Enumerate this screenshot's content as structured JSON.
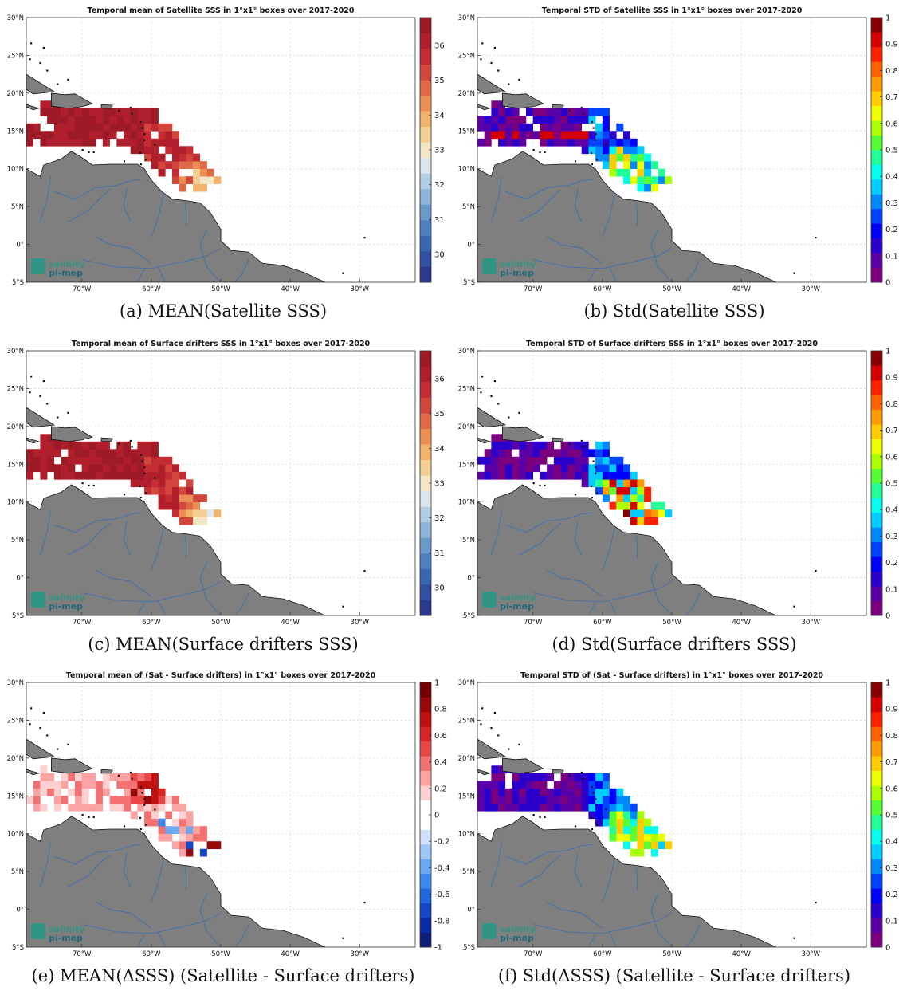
{
  "figure": {
    "panels": [
      {
        "id": "a",
        "title": "Temporal mean of Satellite SSS in 1°x1° boxes over 2017-2020",
        "caption": "(a) MEAN(Satellite SSS)",
        "colormap": "sss",
        "cbar_ticks": [
          "36",
          "35",
          "34",
          "33",
          "32",
          "31",
          "30"
        ],
        "cbar_range": [
          29.2,
          36.8
        ],
        "pattern": "mean_sat"
      },
      {
        "id": "b",
        "title": "Temporal STD of Satellite SSS in 1°x1° boxes over 2017-2020",
        "caption": "(b) Std(Satellite SSS)",
        "colormap": "jet",
        "cbar_ticks": [
          "1",
          "0.9",
          "0.8",
          "0.7",
          "0.6",
          "0.5",
          "0.4",
          "0.3",
          "0.2",
          "0.1",
          "0"
        ],
        "cbar_range": [
          0,
          1
        ],
        "pattern": "std_sat"
      },
      {
        "id": "c",
        "title": "Temporal mean of Surface drifters SSS in 1°x1° boxes over 2017-2020",
        "caption": "(c) MEAN(Surface drifters SSS)",
        "colormap": "sss",
        "cbar_ticks": [
          "36",
          "35",
          "34",
          "33",
          "32",
          "31",
          "30"
        ],
        "cbar_range": [
          29.2,
          36.8
        ],
        "pattern": "mean_dr"
      },
      {
        "id": "d",
        "title": "Temporal STD of Surface drifters SSS in 1°x1° boxes over 2017-2020",
        "caption": "(d) Std(Surface drifters SSS)",
        "colormap": "jet",
        "cbar_ticks": [
          "1",
          "0.9",
          "0.8",
          "0.7",
          "0.6",
          "0.5",
          "0.4",
          "0.3",
          "0.2",
          "0.1",
          "0"
        ],
        "cbar_range": [
          0,
          1
        ],
        "pattern": "std_dr"
      },
      {
        "id": "e",
        "title": "Temporal mean of (Sat - Surface drifters) in 1°x1° boxes over 2017-2020",
        "caption": "(e) MEAN(ΔSSS) (Satellite - Surface drifters)",
        "colormap": "div",
        "cbar_ticks": [
          "1",
          "0.8",
          "0.6",
          "0.4",
          "0.2",
          "0",
          "-0.2",
          "-0.4",
          "-0.6",
          "-0.8",
          "-1"
        ],
        "cbar_range": [
          -1,
          1
        ],
        "pattern": "mean_diff"
      },
      {
        "id": "f",
        "title": "Temporal STD of (Sat - Surface drifters) in 1°x1° boxes over 2017-2020",
        "caption": "(f) Std(ΔSSS) (Satellite - Surface drifters)",
        "colormap": "jet",
        "cbar_ticks": [
          "1",
          "0.9",
          "0.8",
          "0.7",
          "0.6",
          "0.5",
          "0.4",
          "0.3",
          "0.2",
          "0.1",
          "0"
        ],
        "cbar_range": [
          0,
          1
        ],
        "pattern": "std_diff"
      }
    ],
    "lat_ticks": [
      "30°N",
      "25°N",
      "20°N",
      "15°N",
      "10°N",
      "5°N",
      "0°",
      "5°S"
    ],
    "lon_ticks": [
      "70°W",
      "60°W",
      "50°W",
      "40°W",
      "30°W"
    ],
    "logo_line1": "salinity",
    "logo_line2": "pi-mep",
    "colors": {
      "land": "#7f7f7f",
      "rivers": "#3a6fb0",
      "grid": "#d8d8d8",
      "axis": "#333333"
    }
  }
}
